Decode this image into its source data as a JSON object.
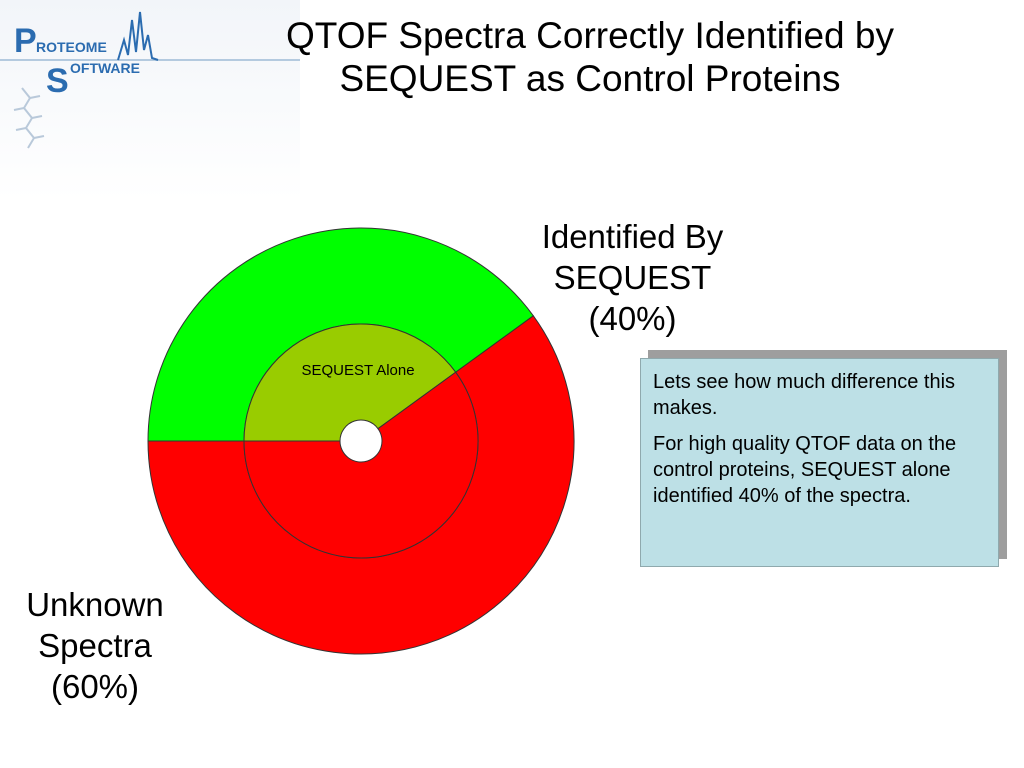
{
  "slide": {
    "title_line1": "QTOF Spectra Correctly Identified by",
    "title_line2": "SEQUEST as Control Proteins"
  },
  "logo": {
    "text_p": "P",
    "text_roteome": "ROTEOME",
    "text_s": "S",
    "text_oftware": "OFTWARE",
    "accent_color": "#2b6cb0"
  },
  "labels": {
    "identified_line1": "Identified By",
    "identified_line2": "SEQUEST",
    "identified_line3": "(40%)",
    "unknown_line1": "Unknown",
    "unknown_line2": "Spectra",
    "unknown_line3": "(60%)"
  },
  "callout": {
    "paragraph1": "Lets see how much difference this makes.",
    "paragraph2": "For high quality QTOF data on the control proteins, SEQUEST alone identified 40% of the spectra."
  },
  "chart_data": {
    "type": "pie",
    "variant": "doughnut",
    "rings": [
      {
        "ring": "outer",
        "slices": [
          {
            "label": "Identified By SEQUEST",
            "value": 40,
            "color": "#00ff00"
          },
          {
            "label": "Unknown Spectra",
            "value": 60,
            "color": "#ff0000"
          }
        ]
      },
      {
        "ring": "inner",
        "slices": [
          {
            "label": "SEQUEST Alone",
            "value": 40,
            "color": "#99cc00"
          },
          {
            "label": "",
            "value": 60,
            "color": "#ff0000"
          }
        ]
      }
    ],
    "start_angle_deg": 180,
    "direction": "clockwise",
    "title": "",
    "legend": "none"
  }
}
